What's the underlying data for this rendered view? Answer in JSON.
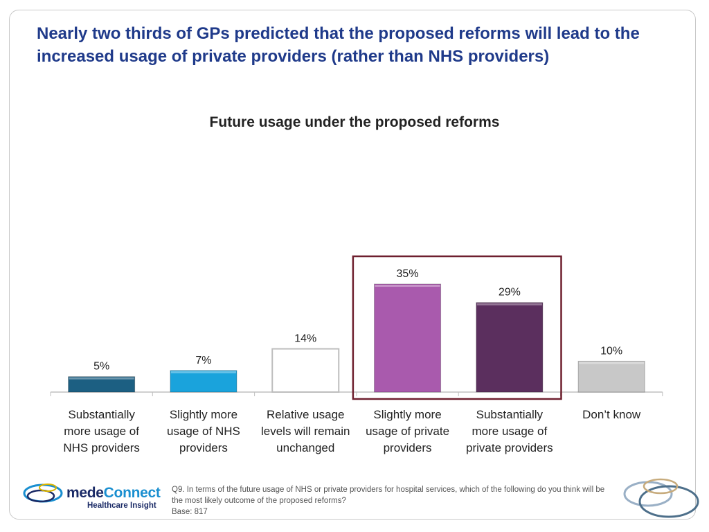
{
  "slide": {
    "headline": "Nearly two thirds of GPs predicted that the proposed reforms will lead to the increased usage of private providers (rather than NHS providers)"
  },
  "chart_data": {
    "type": "bar",
    "title": "Future usage under the proposed reforms",
    "categories": [
      "Substantially more usage of NHS providers",
      "Slightly more usage of NHS providers",
      "Relative usage levels will remain unchanged",
      "Slightly more usage of private providers",
      "Substantially more usage of private providers",
      "Don’t know"
    ],
    "category_lines": [
      [
        "Substantially",
        "more usage of",
        "NHS providers"
      ],
      [
        "Slightly more",
        "usage of NHS",
        "providers"
      ],
      [
        "Relative usage",
        "levels will remain",
        "unchanged"
      ],
      [
        "Slightly more",
        "usage of private",
        "providers"
      ],
      [
        "Substantially",
        "more usage of",
        "private providers"
      ],
      [
        "Don’t know"
      ]
    ],
    "values": [
      5,
      7,
      14,
      35,
      29,
      10
    ],
    "data_labels": [
      "5%",
      "7%",
      "14%",
      "35%",
      "29%",
      "10%"
    ],
    "unit": "%",
    "ylim": [
      0,
      35
    ],
    "grid": false,
    "legend": "none",
    "colors": [
      "#1c5f82",
      "#1aa3dc",
      "#ffffff",
      "#a95aad",
      "#5b2f5e",
      "#c8c8c8"
    ],
    "highlight": {
      "indices": [
        3,
        4
      ],
      "color": "#6e1f2e"
    }
  },
  "footnote": {
    "question": "Q9. In terms of the future usage of NHS or private providers for hospital services, which of the following do you think will be the most likely outcome of the proposed reforms?",
    "base": "Base: 817"
  },
  "logo": {
    "name_part1": "mede",
    "name_part2": "Connect",
    "tagline": "Healthcare Insight"
  }
}
